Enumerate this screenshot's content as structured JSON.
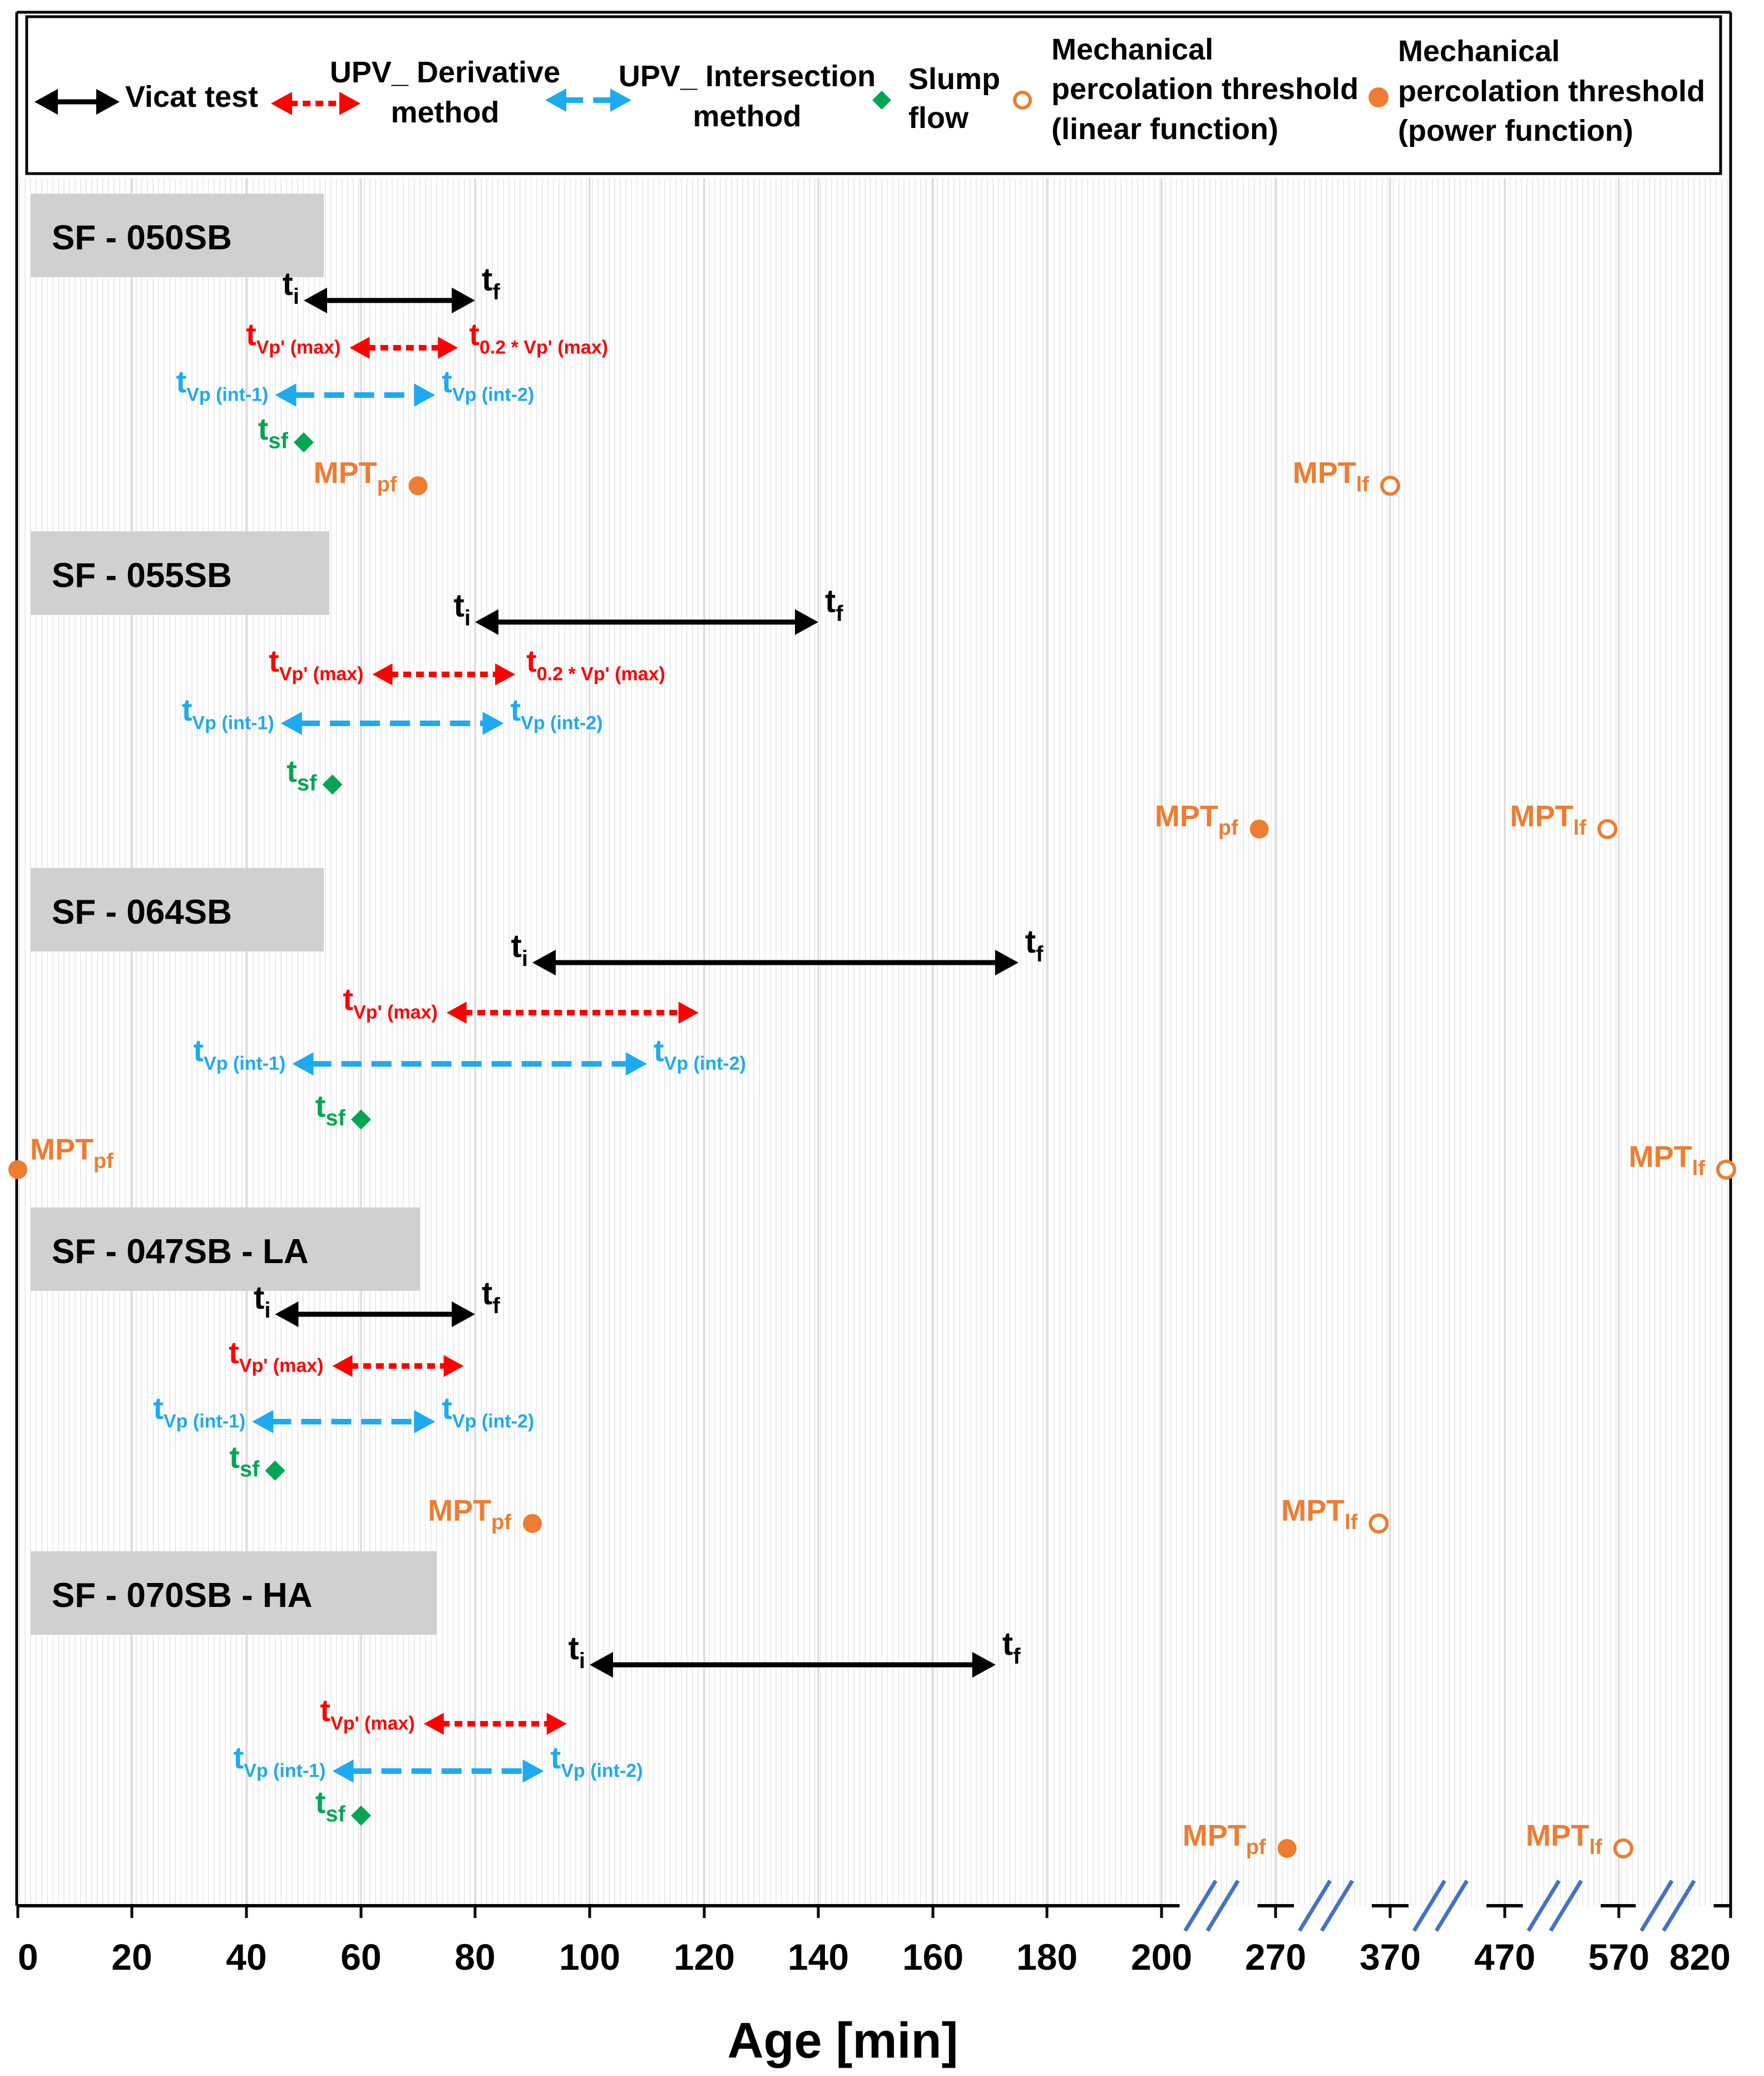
{
  "chart_data": {
    "type": "timeline",
    "xlabel": "Age [min]",
    "x_ticks": [
      {
        "label": "0",
        "value": 0
      },
      {
        "label": "20",
        "value": 20
      },
      {
        "label": "40",
        "value": 40
      },
      {
        "label": "60",
        "value": 60
      },
      {
        "label": "80",
        "value": 80
      },
      {
        "label": "100",
        "value": 100
      },
      {
        "label": "120",
        "value": 120
      },
      {
        "label": "140",
        "value": 140
      },
      {
        "label": "160",
        "value": 160
      },
      {
        "label": "180",
        "value": 180
      },
      {
        "label": "200",
        "value": 200
      },
      {
        "label": "270",
        "value": 270
      },
      {
        "label": "370",
        "value": 370
      },
      {
        "label": "470",
        "value": 470
      },
      {
        "label": "570",
        "value": 570
      },
      {
        "label": "820",
        "value": 820
      }
    ],
    "axis_breaks_after": [
      200,
      270,
      370,
      470,
      570
    ],
    "legend": [
      {
        "label": "Vicat test",
        "marker": "solid-double-arrow",
        "color": "#000000"
      },
      {
        "label": "UPV_ Derivative method",
        "marker": "dotted-double-arrow",
        "color": "#ff0000"
      },
      {
        "label": "UPV_ Intersection method",
        "marker": "dashed-double-arrow",
        "color": "#1eaaf0"
      },
      {
        "label": "Slump flow",
        "marker": "diamond",
        "color": "#00a651"
      },
      {
        "label": "Mechanical percolation threshold (linear function)",
        "marker": "open-circle",
        "color": "#ed7d31"
      },
      {
        "label": "Mechanical percolation threshold (power function)",
        "marker": "filled-circle",
        "color": "#ed7d31"
      }
    ],
    "mixes": [
      {
        "name": "SF - 050SB",
        "vicat": {
          "t_i": 50,
          "t_f": 80,
          "label_i": "t",
          "sub_i": "i",
          "label_f": "t",
          "sub_f": "f"
        },
        "derivative": {
          "start": 58,
          "end": 77,
          "label_start": "t",
          "sub_start": "Vp' (max)",
          "label_end": "t",
          "sub_end": "0.2 * Vp' (max)"
        },
        "intersection": {
          "start": 45,
          "end": 73,
          "label_start": "t",
          "sub_start": "Vp (int-1)",
          "label_end": "t",
          "sub_end": "Vp (int-2)"
        },
        "slump_flow": {
          "t": 50,
          "label": "t",
          "sub": "sf"
        },
        "mpt_pf": {
          "t": 70,
          "label": "MPT",
          "sub": "pf"
        },
        "mpt_lf": {
          "t": 370,
          "label": "MPT",
          "sub": "lf"
        }
      },
      {
        "name": "SF - 055SB",
        "vicat": {
          "t_i": 80,
          "t_f": 140,
          "label_i": "t",
          "sub_i": "i",
          "label_f": "t",
          "sub_f": "f"
        },
        "derivative": {
          "start": 62,
          "end": 87,
          "label_start": "t",
          "sub_start": "Vp' (max)",
          "label_end": "t",
          "sub_end": "0.2 * Vp' (max)"
        },
        "intersection": {
          "start": 46,
          "end": 85,
          "label_start": "t",
          "sub_start": "Vp (int-1)",
          "label_end": "t",
          "sub_end": "Vp (int-2)"
        },
        "slump_flow": {
          "t": 55,
          "label": "t",
          "sub": "sf"
        },
        "mpt_pf": {
          "t": 260,
          "label": "MPT",
          "sub": "pf"
        },
        "mpt_lf": {
          "t": 560,
          "label": "MPT",
          "sub": "lf"
        }
      },
      {
        "name": "SF - 064SB",
        "vicat": {
          "t_i": 90,
          "t_f": 175,
          "label_i": "t",
          "sub_i": "i",
          "label_f": "t",
          "sub_f": "f"
        },
        "derivative": {
          "start": 75,
          "end": 119,
          "label_start": "t",
          "sub_start": "Vp' (max)"
        },
        "intersection": {
          "start": 48,
          "end": 110,
          "label_start": "t",
          "sub_start": "Vp (int-1)",
          "label_end": "t",
          "sub_end": "Vp (int-2)"
        },
        "slump_flow": {
          "t": 60,
          "label": "t",
          "sub": "sf"
        },
        "mpt_pf": {
          "t": 0,
          "label": "MPT",
          "sub": "pf"
        },
        "mpt_lf": {
          "t": 820,
          "label": "MPT",
          "sub": "lf"
        }
      },
      {
        "name": "SF - 047SB - LA",
        "vicat": {
          "t_i": 45,
          "t_f": 80,
          "label_i": "t",
          "sub_i": "i",
          "label_f": "t",
          "sub_f": "f"
        },
        "derivative": {
          "start": 55,
          "end": 78,
          "label_start": "t",
          "sub_start": "Vp' (max)"
        },
        "intersection": {
          "start": 41,
          "end": 73,
          "label_start": "t",
          "sub_start": "Vp (int-1)",
          "label_end": "t",
          "sub_end": "Vp (int-2)"
        },
        "slump_flow": {
          "t": 45,
          "label": "t",
          "sub": "sf"
        },
        "mpt_pf": {
          "t": 90,
          "label": "MPT",
          "sub": "pf"
        },
        "mpt_lf": {
          "t": 360,
          "label": "MPT",
          "sub": "lf"
        }
      },
      {
        "name": "SF - 070SB - HA",
        "vicat": {
          "t_i": 100,
          "t_f": 171,
          "label_i": "t",
          "sub_i": "i",
          "label_f": "t",
          "sub_f": "f"
        },
        "derivative": {
          "start": 71,
          "end": 96,
          "label_start": "t",
          "sub_start": "Vp' (max)"
        },
        "intersection": {
          "start": 55,
          "end": 92,
          "label_start": "t",
          "sub_start": "Vp (int-1)",
          "label_end": "t",
          "sub_end": "Vp (int-2)"
        },
        "slump_flow": {
          "t": 60,
          "label": "t",
          "sub": "sf"
        },
        "mpt_pf": {
          "t": 280,
          "label": "MPT",
          "sub": "pf"
        },
        "mpt_lf": {
          "t": 580,
          "label": "MPT",
          "sub": "lf"
        }
      }
    ]
  },
  "colors": {
    "vicat": "#000000",
    "derivative": "#ff0000",
    "intersection": "#1eaaf0",
    "slump": "#00a651",
    "mpt": "#ed7d31",
    "break": "#4472c4",
    "label_box": "#d0d0d0"
  }
}
